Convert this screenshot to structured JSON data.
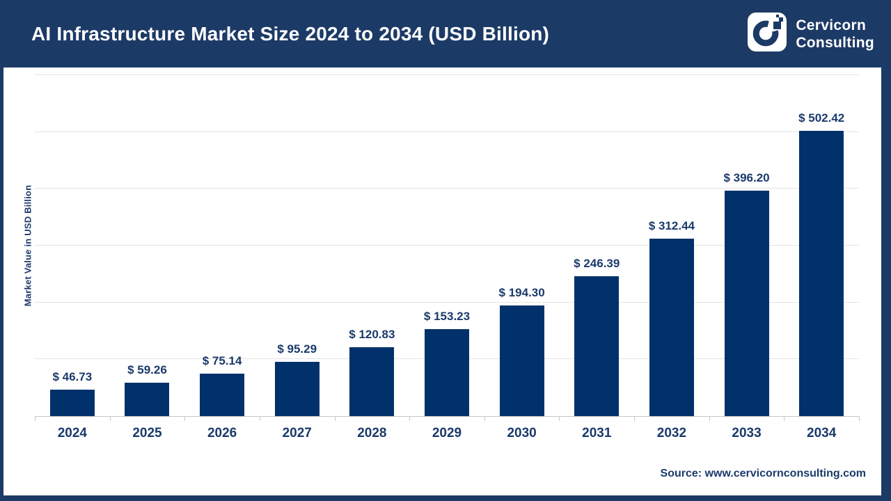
{
  "header": {
    "title": "AI Infrastructure Market Size 2024 to 2034 (USD Billion)",
    "logo": {
      "line1": "Cervicorn",
      "line2": "Consulting"
    }
  },
  "chart_data": {
    "type": "bar",
    "title": "AI Infrastructure Market Size 2024 to 2034 (USD Billion)",
    "categories": [
      "2024",
      "2025",
      "2026",
      "2027",
      "2028",
      "2029",
      "2030",
      "2031",
      "2032",
      "2033",
      "2034"
    ],
    "values": [
      46.73,
      59.26,
      75.14,
      95.29,
      120.83,
      153.23,
      194.3,
      246.39,
      312.44,
      396.2,
      502.42
    ],
    "value_prefix": "$ ",
    "xlabel": "",
    "ylabel": "Market Value in USD Billion",
    "ylim": [
      0,
      600
    ],
    "gridline_step": 100,
    "grid": true,
    "legend": "none",
    "bar_color": "#00316b",
    "label_color": "#1b3a6b"
  },
  "footer": {
    "source": "Source: www.cervicornconsulting.com"
  },
  "colors": {
    "header_bg": "#1c3a66",
    "bar_fill": "#00316b",
    "text_navy": "#1b3a6b",
    "gridline": "#e4e4e4",
    "axis": "#c6c6c6",
    "title_text": "#ffffff"
  }
}
